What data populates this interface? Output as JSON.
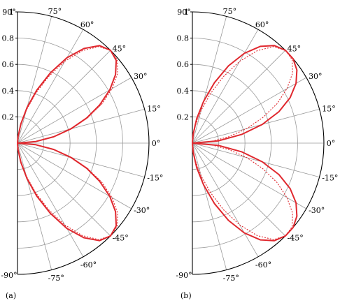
{
  "chart_data": [
    {
      "type": "polar-half",
      "panel_label": "(a)",
      "r_ticks": [
        "0.2",
        "0.4",
        "0.6",
        "0.8",
        "1"
      ],
      "r_values": [
        0.2,
        0.4,
        0.6,
        0.8,
        1.0
      ],
      "angle_ticks": [
        "90°",
        "75°",
        "60°",
        "45°",
        "30°",
        "15°",
        "0°",
        "-15°",
        "-30°",
        "-45°",
        "-60°",
        "-75°",
        "-90°"
      ],
      "angle_values": [
        90,
        75,
        60,
        45,
        30,
        15,
        0,
        -15,
        -30,
        -45,
        -60,
        -75,
        -90
      ],
      "rlim": [
        0,
        1
      ],
      "thetalim": [
        -90,
        90
      ],
      "grid": true,
      "series": [
        {
          "style": "solid",
          "color": "#e0282e",
          "theta": [
            0,
            5,
            10,
            15,
            20,
            25,
            30,
            35,
            40,
            45,
            50,
            55,
            60,
            65,
            70,
            75,
            80,
            85,
            90
          ],
          "r": [
            0.0,
            0.14,
            0.28,
            0.42,
            0.56,
            0.69,
            0.81,
            0.91,
            0.98,
            1.0,
            0.97,
            0.88,
            0.75,
            0.59,
            0.43,
            0.28,
            0.15,
            0.05,
            0.0
          ]
        },
        {
          "style": "dotted",
          "color": "#e0282e",
          "theta": [
            0,
            5,
            10,
            15,
            20,
            25,
            30,
            35,
            40,
            45,
            50,
            55,
            60,
            65,
            70,
            75,
            80,
            85,
            90
          ],
          "r": [
            0.0,
            0.14,
            0.28,
            0.43,
            0.57,
            0.71,
            0.83,
            0.93,
            0.99,
            1.0,
            0.96,
            0.86,
            0.72,
            0.56,
            0.4,
            0.26,
            0.14,
            0.05,
            0.0
          ]
        }
      ]
    },
    {
      "type": "polar-half",
      "panel_label": "(b)",
      "r_ticks": [
        "0.2",
        "0.4",
        "0.6",
        "0.8",
        "1"
      ],
      "r_values": [
        0.2,
        0.4,
        0.6,
        0.8,
        1.0
      ],
      "angle_ticks": [
        "90°",
        "75°",
        "60°",
        "45°",
        "30°",
        "15°",
        "0°",
        "-15°",
        "-30°",
        "-45°",
        "-60°",
        "-75°",
        "-90°"
      ],
      "angle_values": [
        90,
        75,
        60,
        45,
        30,
        15,
        0,
        -15,
        -30,
        -45,
        -60,
        -75,
        -90
      ],
      "rlim": [
        0,
        1
      ],
      "thetalim": [
        -90,
        90
      ],
      "grid": true,
      "series": [
        {
          "style": "solid",
          "color": "#e0282e",
          "theta": [
            0,
            5,
            10,
            15,
            20,
            25,
            30,
            35,
            40,
            45,
            50,
            55,
            60,
            65,
            70,
            75,
            80,
            85,
            90
          ],
          "r": [
            0.0,
            0.2,
            0.38,
            0.55,
            0.7,
            0.82,
            0.91,
            0.97,
            1.0,
            1.0,
            0.97,
            0.9,
            0.79,
            0.65,
            0.49,
            0.33,
            0.19,
            0.07,
            0.0
          ]
        },
        {
          "style": "dotted",
          "color": "#e0282e",
          "theta": [
            0,
            5,
            10,
            15,
            20,
            25,
            30,
            35,
            40,
            45,
            50,
            55,
            60,
            65,
            70,
            75,
            80,
            85,
            90
          ],
          "r": [
            0.0,
            0.14,
            0.28,
            0.43,
            0.57,
            0.71,
            0.83,
            0.93,
            0.99,
            1.0,
            0.96,
            0.86,
            0.72,
            0.56,
            0.4,
            0.26,
            0.14,
            0.05,
            0.0
          ]
        }
      ]
    }
  ]
}
